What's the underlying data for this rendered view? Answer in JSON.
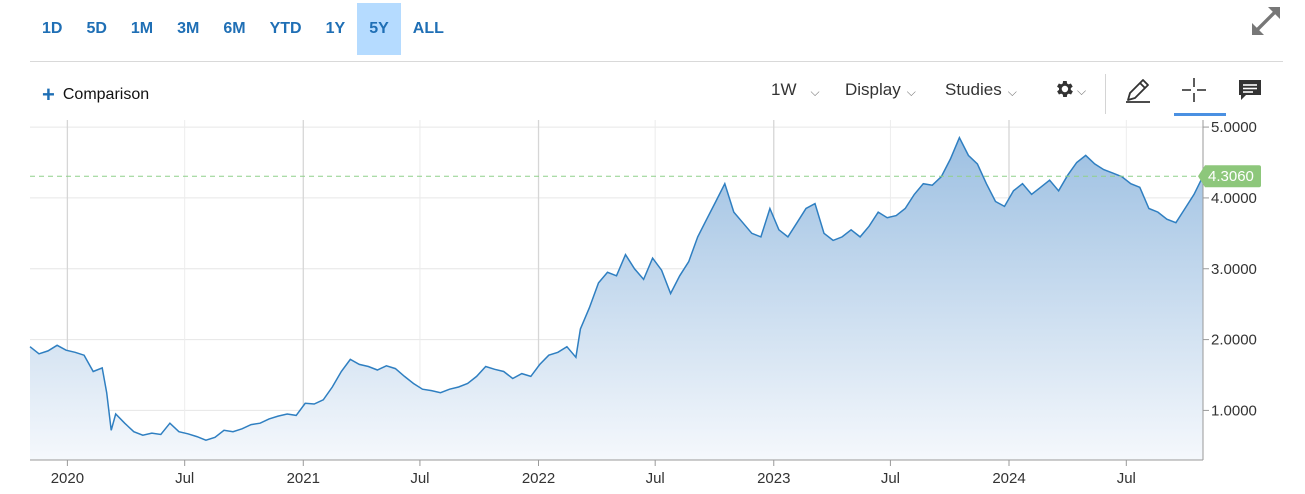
{
  "range_buttons": [
    {
      "label": "1D",
      "active": false
    },
    {
      "label": "5D",
      "active": false
    },
    {
      "label": "1M",
      "active": false
    },
    {
      "label": "3M",
      "active": false
    },
    {
      "label": "6M",
      "active": false
    },
    {
      "label": "YTD",
      "active": false
    },
    {
      "label": "1Y",
      "active": false
    },
    {
      "label": "5Y",
      "active": true
    },
    {
      "label": "ALL",
      "active": false
    }
  ],
  "toolbar": {
    "comparison_label": "Comparison",
    "interval_label": "1W",
    "display_label": "Display",
    "studies_label": "Studies"
  },
  "icons": [
    "expand-icon",
    "plus-icon",
    "gear-icon",
    "pencil-icon",
    "crosshair-icon",
    "comment-icon"
  ],
  "colors": {
    "line": "#2f7fc1",
    "area_top": "#9dc0e2",
    "area_bottom": "#f5f8fc",
    "last_price_tag": "#8dc77b",
    "reference_line": "#8fd08a",
    "active_range": "#b5dbff",
    "link_blue": "#1f6fb5"
  },
  "chart_data": {
    "type": "area",
    "last_value_label": "4.3060",
    "reference_value": 4.306,
    "ylim": [
      0.3,
      5.1
    ],
    "yticks": [
      {
        "value": 1,
        "label": "1.0000"
      },
      {
        "value": 2,
        "label": "2.0000"
      },
      {
        "value": 3,
        "label": "3.0000"
      },
      {
        "value": 4,
        "label": "4.0000"
      },
      {
        "value": 5,
        "label": "5.0000"
      }
    ],
    "xlim": [
      "2019-11-04",
      "2024-10-28"
    ],
    "xticks": [
      {
        "date": "2020-01-01",
        "label": "2020"
      },
      {
        "date": "2020-07-01",
        "label": "Jul"
      },
      {
        "date": "2021-01-01",
        "label": "2021"
      },
      {
        "date": "2021-07-01",
        "label": "Jul"
      },
      {
        "date": "2022-01-01",
        "label": "2022"
      },
      {
        "date": "2022-07-01",
        "label": "Jul"
      },
      {
        "date": "2023-01-01",
        "label": "2023"
      },
      {
        "date": "2023-07-01",
        "label": "Jul"
      },
      {
        "date": "2024-01-01",
        "label": "2024"
      },
      {
        "date": "2024-07-01",
        "label": "Jul"
      }
    ],
    "grid": true,
    "x": [
      "2019-11-04",
      "2019-11-18",
      "2019-12-02",
      "2019-12-16",
      "2019-12-30",
      "2020-01-13",
      "2020-01-27",
      "2020-02-10",
      "2020-02-24",
      "2020-03-02",
      "2020-03-09",
      "2020-03-16",
      "2020-03-30",
      "2020-04-13",
      "2020-04-27",
      "2020-05-11",
      "2020-05-25",
      "2020-06-08",
      "2020-06-22",
      "2020-07-06",
      "2020-07-20",
      "2020-08-03",
      "2020-08-17",
      "2020-08-31",
      "2020-09-14",
      "2020-09-28",
      "2020-10-12",
      "2020-10-26",
      "2020-11-09",
      "2020-11-23",
      "2020-12-07",
      "2020-12-21",
      "2021-01-04",
      "2021-01-18",
      "2021-02-01",
      "2021-02-15",
      "2021-03-01",
      "2021-03-15",
      "2021-03-29",
      "2021-04-12",
      "2021-04-26",
      "2021-05-10",
      "2021-05-24",
      "2021-06-07",
      "2021-06-21",
      "2021-07-05",
      "2021-07-19",
      "2021-08-02",
      "2021-08-16",
      "2021-08-30",
      "2021-09-13",
      "2021-09-27",
      "2021-10-11",
      "2021-10-25",
      "2021-11-08",
      "2021-11-22",
      "2021-12-06",
      "2021-12-20",
      "2022-01-03",
      "2022-01-17",
      "2022-01-31",
      "2022-02-14",
      "2022-02-28",
      "2022-03-07",
      "2022-03-21",
      "2022-04-04",
      "2022-04-18",
      "2022-05-02",
      "2022-05-16",
      "2022-05-30",
      "2022-06-13",
      "2022-06-27",
      "2022-07-11",
      "2022-07-25",
      "2022-08-08",
      "2022-08-22",
      "2022-09-05",
      "2022-09-19",
      "2022-10-03",
      "2022-10-17",
      "2022-10-31",
      "2022-11-14",
      "2022-11-28",
      "2022-12-12",
      "2022-12-26",
      "2023-01-09",
      "2023-01-23",
      "2023-02-06",
      "2023-02-20",
      "2023-03-06",
      "2023-03-20",
      "2023-04-03",
      "2023-04-17",
      "2023-05-01",
      "2023-05-15",
      "2023-05-29",
      "2023-06-12",
      "2023-06-26",
      "2023-07-10",
      "2023-07-24",
      "2023-08-07",
      "2023-08-21",
      "2023-09-04",
      "2023-09-18",
      "2023-10-02",
      "2023-10-16",
      "2023-10-30",
      "2023-11-13",
      "2023-11-27",
      "2023-12-11",
      "2023-12-25",
      "2024-01-08",
      "2024-01-22",
      "2024-02-05",
      "2024-02-19",
      "2024-03-04",
      "2024-03-18",
      "2024-04-01",
      "2024-04-15",
      "2024-04-29",
      "2024-05-13",
      "2024-05-27",
      "2024-06-10",
      "2024-06-24",
      "2024-07-08",
      "2024-07-22",
      "2024-08-05",
      "2024-08-19",
      "2024-09-02",
      "2024-09-16",
      "2024-09-30",
      "2024-10-14",
      "2024-10-28"
    ],
    "values": [
      1.9,
      1.8,
      1.84,
      1.92,
      1.85,
      1.82,
      1.78,
      1.55,
      1.6,
      1.25,
      0.72,
      0.95,
      0.82,
      0.7,
      0.65,
      0.68,
      0.66,
      0.82,
      0.7,
      0.67,
      0.63,
      0.58,
      0.62,
      0.72,
      0.7,
      0.74,
      0.8,
      0.82,
      0.88,
      0.92,
      0.95,
      0.93,
      1.1,
      1.09,
      1.15,
      1.33,
      1.55,
      1.72,
      1.65,
      1.62,
      1.57,
      1.63,
      1.59,
      1.48,
      1.38,
      1.3,
      1.28,
      1.25,
      1.3,
      1.33,
      1.38,
      1.48,
      1.62,
      1.58,
      1.55,
      1.45,
      1.52,
      1.48,
      1.65,
      1.78,
      1.82,
      1.9,
      1.75,
      2.15,
      2.45,
      2.8,
      2.95,
      2.9,
      3.2,
      3.0,
      2.85,
      3.15,
      2.98,
      2.65,
      2.9,
      3.1,
      3.45,
      3.7,
      3.95,
      4.2,
      3.8,
      3.65,
      3.5,
      3.45,
      3.85,
      3.55,
      3.45,
      3.65,
      3.85,
      3.92,
      3.5,
      3.4,
      3.45,
      3.55,
      3.45,
      3.6,
      3.8,
      3.72,
      3.75,
      3.85,
      4.05,
      4.2,
      4.18,
      4.3,
      4.55,
      4.85,
      4.6,
      4.48,
      4.2,
      3.95,
      3.88,
      4.1,
      4.2,
      4.05,
      4.15,
      4.25,
      4.1,
      4.32,
      4.5,
      4.6,
      4.48,
      4.4,
      4.35,
      4.3,
      4.2,
      4.15,
      3.85,
      3.8,
      3.7,
      3.65,
      3.85,
      4.05,
      4.306
    ]
  }
}
